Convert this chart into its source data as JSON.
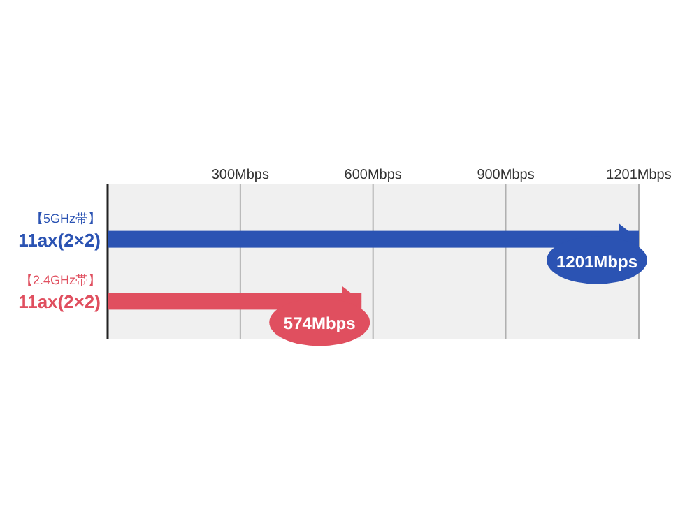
{
  "chart_data": {
    "type": "bar",
    "orientation": "horizontal",
    "categories": [
      "11ax(2×2)",
      "11ax(2×2)"
    ],
    "values": [
      1201,
      574
    ],
    "colors": [
      "#2b53b3",
      "#e04f5f"
    ],
    "value_labels": [
      "1201Mbps",
      "574Mbps"
    ],
    "annotations": [
      "【5GHz帯】",
      "【2.4GHz帯】"
    ],
    "xlim": [
      0,
      1201
    ],
    "xticks": [
      {
        "value": 300,
        "label": "300Mbps"
      },
      {
        "value": 600,
        "label": "600Mbps"
      },
      {
        "value": 900,
        "label": "900Mbps"
      },
      {
        "value": 1201,
        "label": "1201Mbps"
      }
    ],
    "grid": "x"
  }
}
